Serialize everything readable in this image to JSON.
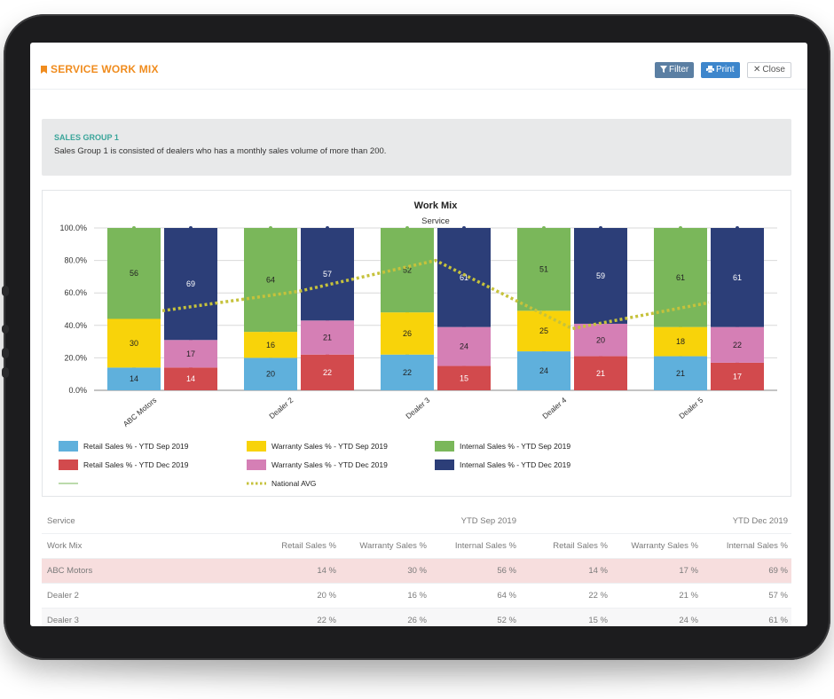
{
  "header": {
    "title": "SERVICE WORK MIX",
    "filter_label": "Filter",
    "print_label": "Print",
    "close_label": "Close"
  },
  "info": {
    "title": "SALES GROUP 1",
    "description": "Sales Group 1 is consisted of dealers who has a monthly sales volume of more than 200."
  },
  "chart_data": {
    "type": "bar",
    "stacked": true,
    "title": "Work Mix",
    "subtitle": "Service",
    "categories": [
      "ABC Motors",
      "Dealer 2",
      "Dealer 3",
      "Dealer 4",
      "Dealer 5"
    ],
    "y_ticks": [
      "0.0%",
      "20.0%",
      "40.0%",
      "60.0%",
      "80.0%",
      "100.0%"
    ],
    "ylim": [
      0,
      100
    ],
    "stacks": [
      {
        "name": "YTD Sep 2019",
        "series": [
          {
            "name": "Retail Sales % - YTD Sep 2019",
            "color": "#5fb0dc",
            "values": [
              14,
              20,
              22,
              24,
              21
            ]
          },
          {
            "name": "Warranty Sales % - YTD Sep 2019",
            "color": "#f8d30a",
            "values": [
              30,
              16,
              26,
              25,
              18
            ]
          },
          {
            "name": "Internal Sales % - YTD Sep 2019",
            "color": "#7ab75a",
            "values": [
              56,
              64,
              52,
              51,
              61
            ]
          }
        ]
      },
      {
        "name": "YTD Dec 2019",
        "series": [
          {
            "name": "Retail Sales % - YTD Dec 2019",
            "color": "#d24a4d",
            "values": [
              14,
              22,
              15,
              21,
              17
            ]
          },
          {
            "name": "Warranty Sales % - YTD Dec 2019",
            "color": "#d57fb5",
            "values": [
              17,
              21,
              24,
              20,
              22
            ]
          },
          {
            "name": "Internal Sales % - YTD Dec 2019",
            "color": "#2c3e78",
            "values": [
              69,
              57,
              61,
              59,
              61
            ]
          }
        ]
      }
    ],
    "line_series": {
      "name": "National AVG",
      "color": "#c6c23c",
      "values": [
        49,
        61,
        80,
        38,
        54
      ]
    },
    "legend": [
      {
        "label": "Retail Sales % - YTD Sep 2019",
        "color": "#5fb0dc",
        "kind": "box"
      },
      {
        "label": "Warranty Sales % - YTD Sep 2019",
        "color": "#f8d30a",
        "kind": "box"
      },
      {
        "label": "Internal Sales % - YTD Sep 2019",
        "color": "#7ab75a",
        "kind": "box"
      },
      {
        "label": "Retail Sales % - YTD Dec 2019",
        "color": "#d24a4d",
        "kind": "box"
      },
      {
        "label": "Warranty Sales % - YTD Dec 2019",
        "color": "#d57fb5",
        "kind": "box"
      },
      {
        "label": "Internal Sales % - YTD Dec 2019",
        "color": "#2c3e78",
        "kind": "box"
      },
      {
        "label": "",
        "color": "#7ab75a",
        "kind": "line"
      },
      {
        "label": "National AVG",
        "color": "#c6c23c",
        "kind": "dotted"
      }
    ]
  },
  "table": {
    "group_row": {
      "label": "Service",
      "sep": "YTD Sep 2019",
      "dec": "YTD Dec 2019"
    },
    "headers": [
      "Work Mix",
      "Retail Sales %",
      "Warranty Sales %",
      "Internal Sales %",
      "Retail Sales %",
      "Warranty Sales %",
      "Internal Sales %"
    ],
    "rows": [
      {
        "name": "ABC Motors",
        "values": [
          "14 %",
          "30 %",
          "56 %",
          "14 %",
          "17 %",
          "69 %"
        ]
      },
      {
        "name": "Dealer 2",
        "values": [
          "20 %",
          "16 %",
          "64 %",
          "22 %",
          "21 %",
          "57 %"
        ]
      },
      {
        "name": "Dealer 3",
        "values": [
          "22 %",
          "26 %",
          "52 %",
          "15 %",
          "24 %",
          "61 %"
        ]
      }
    ]
  }
}
